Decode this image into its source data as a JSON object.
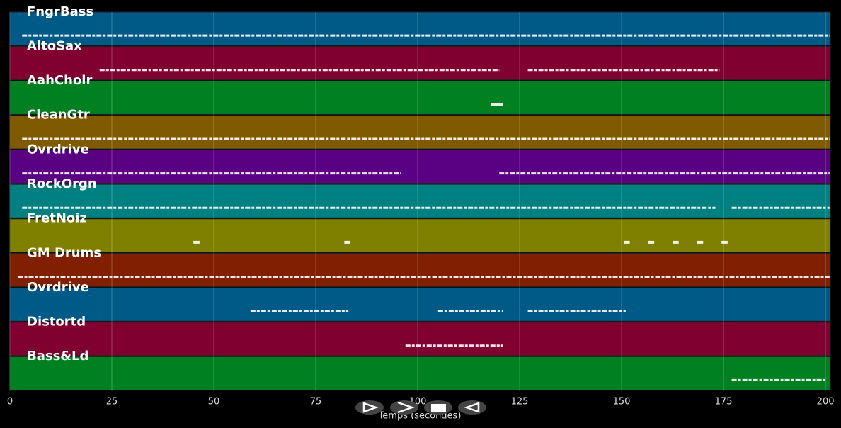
{
  "chart_data": {
    "type": "piano-roll",
    "xlabel": "Temps (secondes)",
    "xlim": [
      0,
      201.2
    ],
    "xticks": [
      0,
      25,
      50,
      75,
      100,
      125,
      150,
      175,
      200
    ],
    "grid": true,
    "tracks": [
      {
        "name": "FngrBass",
        "color": "#005a87",
        "notes": [
          [
            3,
            201
          ]
        ]
      },
      {
        "name": "AltoSax",
        "color": "#800030",
        "notes": [
          [
            22,
            120
          ],
          [
            127,
            174
          ]
        ]
      },
      {
        "name": "AahChoir",
        "color": "#008020",
        "notes": [
          [
            118,
            121
          ]
        ]
      },
      {
        "name": "CleanGtr",
        "color": "#805a00",
        "notes": [
          [
            3,
            201
          ]
        ]
      },
      {
        "name": "Ovrdrive",
        "color": "#5a0082",
        "notes": [
          [
            3,
            96
          ],
          [
            120,
            201
          ]
        ]
      },
      {
        "name": "RockOrgn",
        "color": "#008080",
        "notes": [
          [
            3,
            173
          ],
          [
            177,
            201
          ]
        ]
      },
      {
        "name": "FretNoiz",
        "color": "#808000",
        "notes": [
          [
            45,
            46.5
          ],
          [
            82,
            83.5
          ],
          [
            150.5,
            152
          ],
          [
            156.5,
            158
          ],
          [
            162.5,
            164
          ],
          [
            168.5,
            170
          ],
          [
            174.5,
            176
          ]
        ]
      },
      {
        "name": "GM Drums",
        "color": "#802000",
        "notes": [
          [
            2,
            201
          ]
        ]
      },
      {
        "name": "Ovrdrive",
        "color": "#005a87",
        "notes": [
          [
            59,
            83
          ],
          [
            105,
            121
          ],
          [
            127,
            151
          ]
        ]
      },
      {
        "name": "Distortd",
        "color": "#800030",
        "notes": [
          [
            97,
            121
          ]
        ]
      },
      {
        "name": "Bass&Ld",
        "color": "#008020",
        "notes": [
          [
            177,
            200
          ]
        ]
      }
    ]
  }
}
